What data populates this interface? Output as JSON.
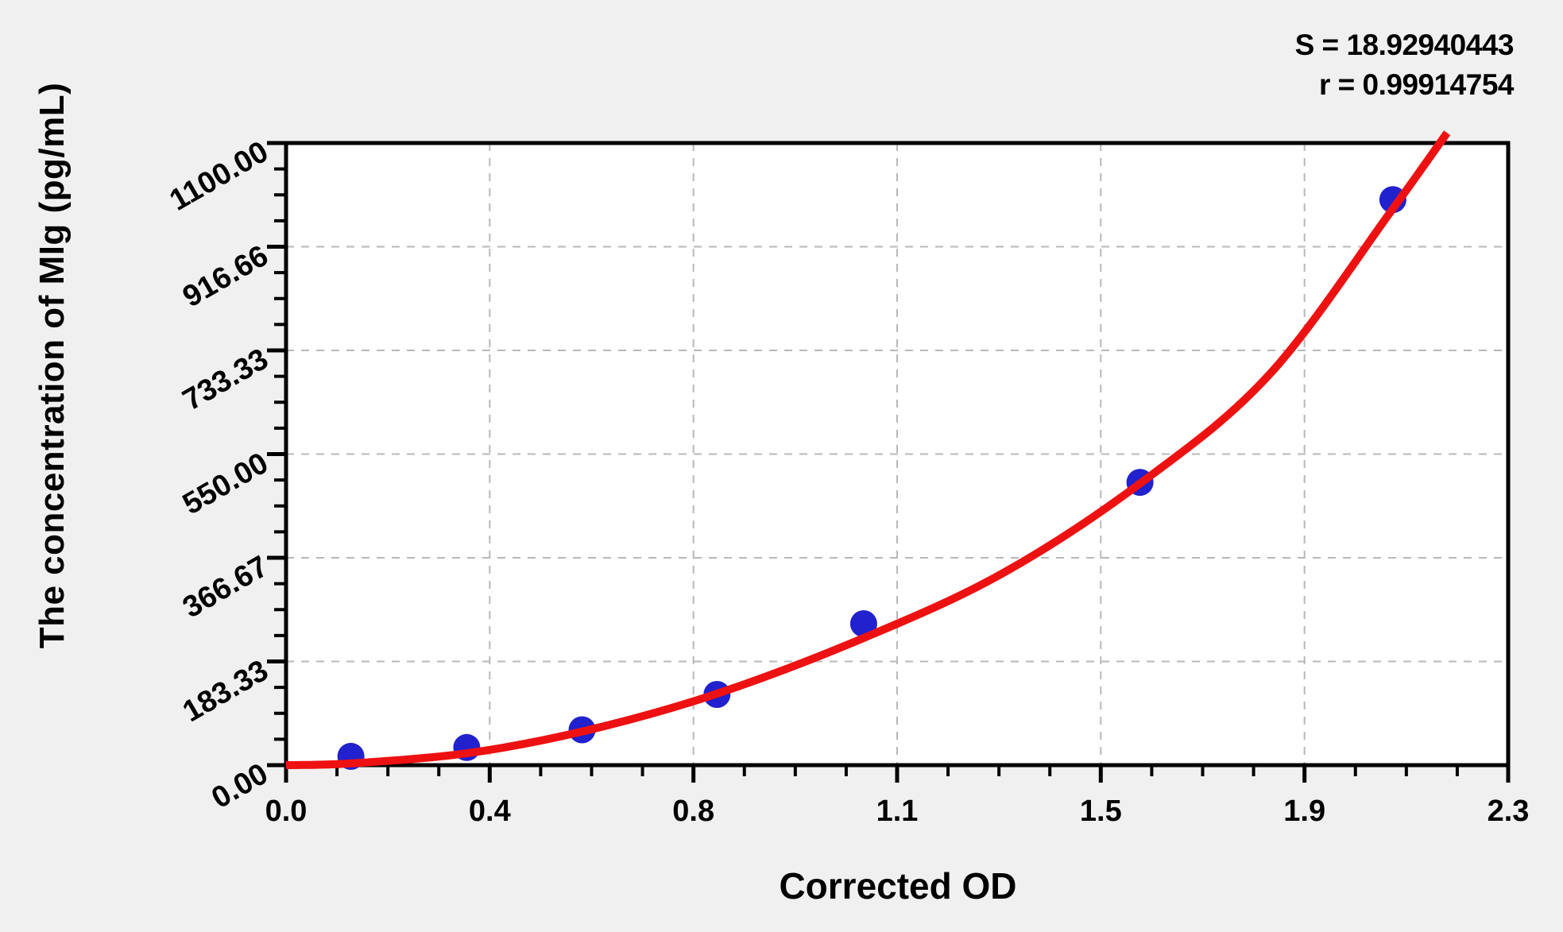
{
  "annotations": {
    "s_text": "S = 18.92940443",
    "r_text": "r = 0.99914754"
  },
  "colors": {
    "page_bg": "#f0f0f0",
    "plot_bg": "#ffffff",
    "axis": "#000000",
    "grid": "#b8b8b8",
    "curve": "#ee1111",
    "points": "#2121cd"
  },
  "chart_data": {
    "type": "scatter",
    "title": "",
    "xlabel": "Corrected OD",
    "ylabel": "The concentration of MIg (pg/mL)",
    "xlim": [
      0,
      2.3
    ],
    "ylim": [
      0,
      1100
    ],
    "grid": "dashed gray lines at major ticks, plot box framed in black",
    "legend_position": "none",
    "x_ticks": {
      "values": [
        0,
        0.3833,
        0.7667,
        1.15,
        1.5333,
        1.9167,
        2.3
      ],
      "labels": [
        "0.0",
        "0.4",
        "0.8",
        "1.1",
        "1.5",
        "1.9",
        "2.3"
      ],
      "minor_divisions": 4
    },
    "y_ticks": {
      "values": [
        0,
        183.33,
        366.67,
        550.0,
        733.33,
        916.66,
        1100.0
      ],
      "labels": [
        "0.00",
        "183.33",
        "366.67",
        "550.00",
        "733.33",
        "916.66",
        "1100.00"
      ],
      "minor_divisions": 4
    },
    "stats": {
      "S": "18.92940443",
      "r": "0.99914754"
    },
    "series": [
      {
        "name": "standard points",
        "type": "scatter",
        "marker": "circle",
        "marker_radius_px": 17,
        "color": "#2121cd",
        "points": [
          {
            "od": 0.122,
            "conc": 15.6
          },
          {
            "od": 0.34,
            "conc": 31.2
          },
          {
            "od": 0.557,
            "conc": 62.5
          },
          {
            "od": 0.811,
            "conc": 125
          },
          {
            "od": 1.087,
            "conc": 250
          },
          {
            "od": 1.607,
            "conc": 500
          },
          {
            "od": 2.083,
            "conc": 1000
          }
        ]
      },
      {
        "name": "fitted curve",
        "type": "line",
        "stroke_width_px": 10,
        "color": "#ee1111",
        "points": [
          {
            "od": 0.0,
            "conc": 0
          },
          {
            "od": 0.12,
            "conc": 3
          },
          {
            "od": 0.34,
            "conc": 21
          },
          {
            "od": 0.56,
            "conc": 60
          },
          {
            "od": 0.81,
            "conc": 126
          },
          {
            "od": 1.09,
            "conc": 226
          },
          {
            "od": 1.35,
            "conc": 340
          },
          {
            "od": 1.61,
            "conc": 500
          },
          {
            "od": 1.85,
            "conc": 690
          },
          {
            "od": 2.08,
            "conc": 980
          },
          {
            "od": 2.185,
            "conc": 1118
          }
        ]
      }
    ]
  }
}
